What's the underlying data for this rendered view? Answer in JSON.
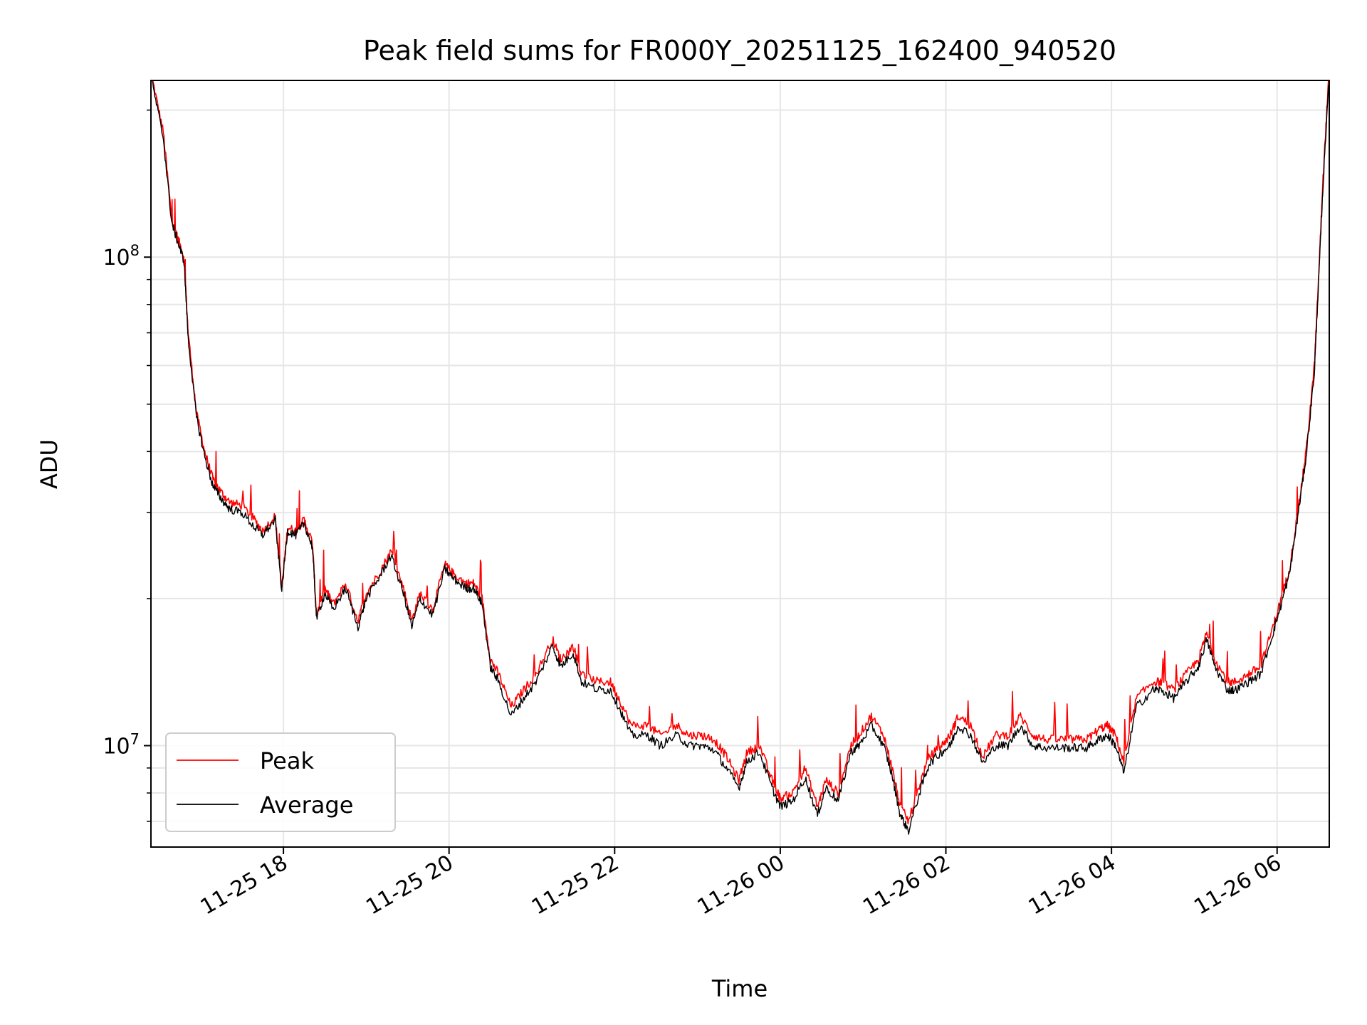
{
  "chart_data": {
    "type": "line",
    "title": "Peak field sums for FR000Y_20251125_162400_940520",
    "xlabel": "Time",
    "ylabel": "ADU",
    "yscale": "log",
    "ylim": [
      6200000,
      230000000
    ],
    "xlim_hours": [
      16.4,
      30.63
    ],
    "x_start_label": "11-25 16:24",
    "x_unit": "hours since 2025-11-25 00:00",
    "grid": true,
    "legend_position": "lower-left",
    "x_ticks": [
      {
        "value": 18,
        "label": "11-25 18"
      },
      {
        "value": 20,
        "label": "11-25 20"
      },
      {
        "value": 22,
        "label": "11-25 22"
      },
      {
        "value": 24,
        "label": "11-26 00"
      },
      {
        "value": 26,
        "label": "11-26 02"
      },
      {
        "value": 28,
        "label": "11-26 04"
      },
      {
        "value": 30,
        "label": "11-26 06"
      }
    ],
    "y_major_ticks": [
      {
        "value": 10000000,
        "base": "10",
        "exp": "7"
      },
      {
        "value": 100000000,
        "base": "10",
        "exp": "8"
      }
    ],
    "series": [
      {
        "name": "Peak",
        "color": "#ff0000",
        "x": [
          16.42,
          16.55,
          16.65,
          16.72,
          16.8,
          16.85,
          16.95,
          17.05,
          17.15,
          17.25,
          17.35,
          17.5,
          17.65,
          17.75,
          17.9,
          17.98,
          18.05,
          18.15,
          18.25,
          18.35,
          18.4,
          18.5,
          18.6,
          18.75,
          18.9,
          19.0,
          19.15,
          19.3,
          19.45,
          19.55,
          19.65,
          19.8,
          19.95,
          20.05,
          20.2,
          20.3,
          20.4,
          20.5,
          20.6,
          20.75,
          20.9,
          21.05,
          21.25,
          21.35,
          21.5,
          21.6,
          21.8,
          21.95,
          22.05,
          22.2,
          22.4,
          22.55,
          22.75,
          22.9,
          23.05,
          23.2,
          23.35,
          23.5,
          23.6,
          23.75,
          23.9,
          24.0,
          24.15,
          24.3,
          24.45,
          24.55,
          24.7,
          24.85,
          24.95,
          25.1,
          25.25,
          25.35,
          25.45,
          25.55,
          25.7,
          25.8,
          25.95,
          26.05,
          26.15,
          26.3,
          26.45,
          26.6,
          26.75,
          26.9,
          27.05,
          27.2,
          27.4,
          27.55,
          27.7,
          27.85,
          27.95,
          28.05,
          28.15,
          28.3,
          28.5,
          28.6,
          28.75,
          28.9,
          29.05,
          29.15,
          29.25,
          29.4,
          29.5,
          29.65,
          29.8,
          29.95,
          30.05,
          30.15,
          30.25,
          30.35,
          30.45,
          30.5,
          30.55,
          30.62
        ],
        "y": [
          230000000,
          180000000,
          120000000,
          110000000,
          100000000,
          70000000,
          48000000,
          40000000,
          35000000,
          33000000,
          31500000,
          31000000,
          29000000,
          27500000,
          29500000,
          21000000,
          28000000,
          27500000,
          29000000,
          26000000,
          18500000,
          21000000,
          19500000,
          21500000,
          18000000,
          20500000,
          22500000,
          25000000,
          21000000,
          18000000,
          20500000,
          19000000,
          23500000,
          22500000,
          21500000,
          21500000,
          20000000,
          15000000,
          14000000,
          12000000,
          13000000,
          14000000,
          16500000,
          15000000,
          16000000,
          14000000,
          13500000,
          13500000,
          12500000,
          11000000,
          11000000,
          10500000,
          11000000,
          10500000,
          10500000,
          10300000,
          9500000,
          8500000,
          9700000,
          10000000,
          8500000,
          7800000,
          8000000,
          9000000,
          7500000,
          8500000,
          8000000,
          10000000,
          10500000,
          11500000,
          10500000,
          9000000,
          7500000,
          7000000,
          8500000,
          9500000,
          10000000,
          10500000,
          11500000,
          11000000,
          9500000,
          10500000,
          10500000,
          11500000,
          10500000,
          10300000,
          10300000,
          10300000,
          10300000,
          10800000,
          11000000,
          10500000,
          9200000,
          12500000,
          13500000,
          13500000,
          13000000,
          14000000,
          15000000,
          17000000,
          15000000,
          13500000,
          13500000,
          14000000,
          14500000,
          17500000,
          20000000,
          23000000,
          30000000,
          40000000,
          60000000,
          90000000,
          140000000,
          230000000
        ]
      },
      {
        "name": "Average",
        "color": "#000000",
        "x": [
          16.42,
          16.55,
          16.65,
          16.72,
          16.8,
          16.85,
          16.95,
          17.05,
          17.15,
          17.25,
          17.35,
          17.5,
          17.65,
          17.75,
          17.9,
          17.98,
          18.05,
          18.15,
          18.25,
          18.35,
          18.4,
          18.5,
          18.6,
          18.75,
          18.9,
          19.0,
          19.15,
          19.3,
          19.45,
          19.55,
          19.65,
          19.8,
          19.95,
          20.05,
          20.2,
          20.3,
          20.4,
          20.5,
          20.6,
          20.75,
          20.9,
          21.05,
          21.25,
          21.35,
          21.5,
          21.6,
          21.8,
          21.95,
          22.05,
          22.2,
          22.4,
          22.55,
          22.75,
          22.9,
          23.05,
          23.2,
          23.35,
          23.5,
          23.6,
          23.75,
          23.9,
          24.0,
          24.15,
          24.3,
          24.45,
          24.55,
          24.7,
          24.85,
          24.95,
          25.1,
          25.25,
          25.35,
          25.45,
          25.55,
          25.7,
          25.8,
          25.95,
          26.05,
          26.15,
          26.3,
          26.45,
          26.6,
          26.75,
          26.9,
          27.05,
          27.2,
          27.4,
          27.55,
          27.7,
          27.85,
          27.95,
          28.05,
          28.15,
          28.3,
          28.5,
          28.6,
          28.75,
          28.9,
          29.05,
          29.15,
          29.25,
          29.4,
          29.5,
          29.65,
          29.8,
          29.95,
          30.05,
          30.15,
          30.25,
          30.35,
          30.45,
          30.5,
          30.55,
          30.62
        ],
        "y": [
          225000000,
          175000000,
          118000000,
          108000000,
          98000000,
          68000000,
          47000000,
          39000000,
          34000000,
          32000000,
          30500000,
          30000000,
          28000000,
          27000000,
          29000000,
          20800000,
          27500000,
          27000000,
          28500000,
          25500000,
          18200000,
          20500000,
          19000000,
          21000000,
          17500000,
          20000000,
          22000000,
          24500000,
          20500000,
          17500000,
          20000000,
          18500000,
          23000000,
          22000000,
          21000000,
          21000000,
          19500000,
          14500000,
          13500000,
          11500000,
          12500000,
          13500000,
          16000000,
          14500000,
          15500000,
          13500000,
          13000000,
          13000000,
          12000000,
          10500000,
          10500000,
          10000000,
          10500000,
          10000000,
          10000000,
          9800000,
          9000000,
          8200000,
          9300000,
          9700000,
          8200000,
          7500000,
          7700000,
          8600000,
          7200000,
          8200000,
          7700000,
          9700000,
          10000000,
          11000000,
          10000000,
          8700000,
          7200000,
          6700000,
          8200000,
          9200000,
          9700000,
          10000000,
          11000000,
          10500000,
          9200000,
          10000000,
          10000000,
          11000000,
          10000000,
          9900000,
          9900000,
          9900000,
          9900000,
          10300000,
          10500000,
          10000000,
          8800000,
          12000000,
          13000000,
          13000000,
          12500000,
          13500000,
          14500000,
          16500000,
          14500000,
          13000000,
          13000000,
          13500000,
          14000000,
          17000000,
          19500000,
          22500000,
          29500000,
          39000000,
          58000000,
          88000000,
          135000000,
          225000000
        ]
      }
    ]
  }
}
